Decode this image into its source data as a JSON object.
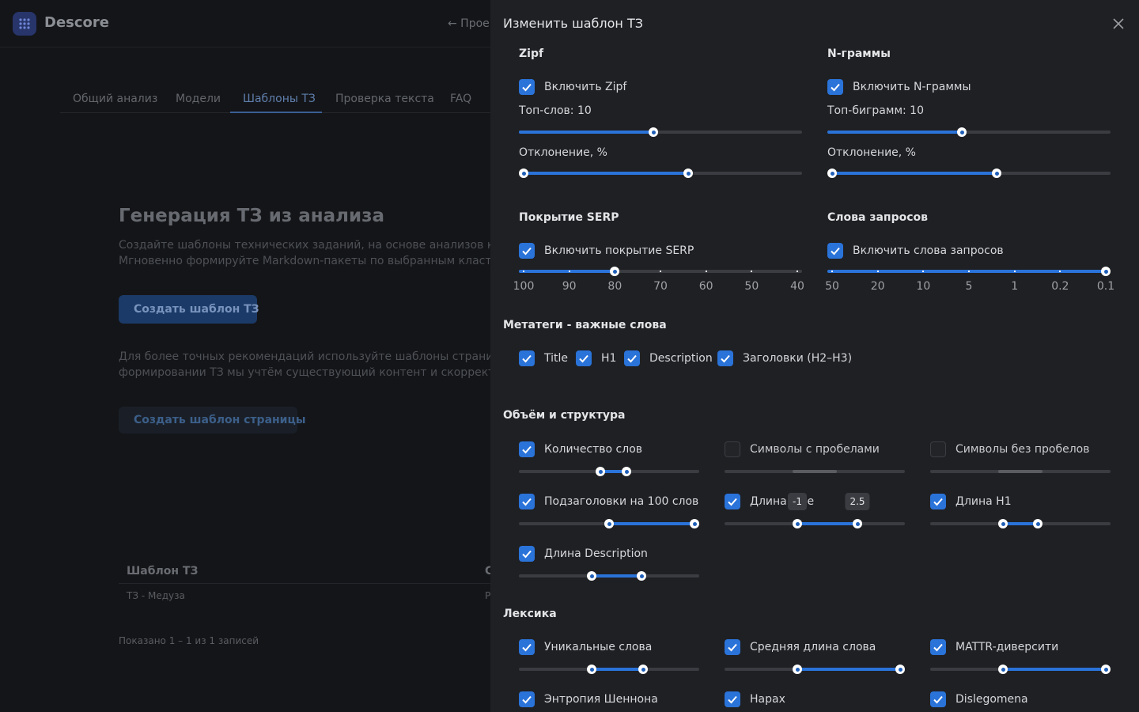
{
  "app": {
    "brand": "Descore",
    "back_link": "← Прое"
  },
  "tabs": [
    "Общий анализ",
    "Модели",
    "Шаблоны ТЗ",
    "Проверка текста",
    "FAQ"
  ],
  "main": {
    "heading": "Генерация ТЗ из анализа",
    "intro": [
      "Создайте шаблоны технических заданий, на основе анализов класте",
      "Мгновенно формируйте Markdown-пакеты по выбранным кластерам"
    ],
    "create_button": "Создать шаблон ТЗ",
    "hint": [
      "Для более точных рекомендаций используйте шаблоны страниц — пр",
      "формировании ТЗ мы учтём существующий контент и скорректируем"
    ],
    "page_button": "Создать шаблон страницы"
  },
  "table": {
    "headers": [
      "Шаблон ТЗ",
      "С"
    ],
    "rows": [
      [
        "ТЗ - Медуза",
        "Р"
      ]
    ],
    "footer": "Показано 1 – 1 из 1 записей"
  },
  "panel": {
    "title": "Изменить шаблон ТЗ",
    "zipf": {
      "title": "Zipf",
      "toggle": "Включить Zipf",
      "top_label": "Топ-слов: 10",
      "deviation_label": "Отклонение, %"
    },
    "ngrams": {
      "title": "N-граммы",
      "toggle": "Включить N-граммы",
      "top_label": "Топ-биграмм: 10",
      "deviation_label": "Отклонение, %"
    },
    "serp": {
      "title": "Покрытие SERP",
      "toggle": "Включить покрытие SERP",
      "ticks": [
        100,
        90,
        80,
        70,
        60,
        50,
        40
      ]
    },
    "queries": {
      "title": "Слова запросов",
      "toggle": "Включить слова запросов",
      "ticks": [
        50,
        20,
        10,
        5,
        1,
        0.2,
        0.1
      ]
    },
    "metatags": {
      "title": "Метатеги - важные слова",
      "options": [
        "Title",
        "H1",
        "Description",
        "Заголовки (H2–H3)"
      ]
    },
    "structure": {
      "title": "Объём и структура",
      "items": [
        {
          "label": "Количество слов",
          "checked": true
        },
        {
          "label": "Символы с пробелами",
          "checked": false
        },
        {
          "label": "Символы без пробелов",
          "checked": false
        },
        {
          "label": "Подзаголовки на 100 слов",
          "checked": true
        },
        {
          "label": "Длина Title",
          "checked": true,
          "range": [
            -1,
            2.5
          ]
        },
        {
          "label": "Длина H1",
          "checked": true
        },
        {
          "label": "Длина Description",
          "checked": true
        }
      ]
    },
    "lexis": {
      "title": "Лексика",
      "items": [
        {
          "label": "Уникальные слова",
          "checked": true
        },
        {
          "label": "Средняя длина слова",
          "checked": true
        },
        {
          "label": "MATTR-диверсити",
          "checked": true
        },
        {
          "label": "Энтропия Шеннона",
          "checked": true
        },
        {
          "label": "Hapax",
          "checked": true
        },
        {
          "label": "Dislegomena",
          "checked": true
        }
      ]
    }
  }
}
